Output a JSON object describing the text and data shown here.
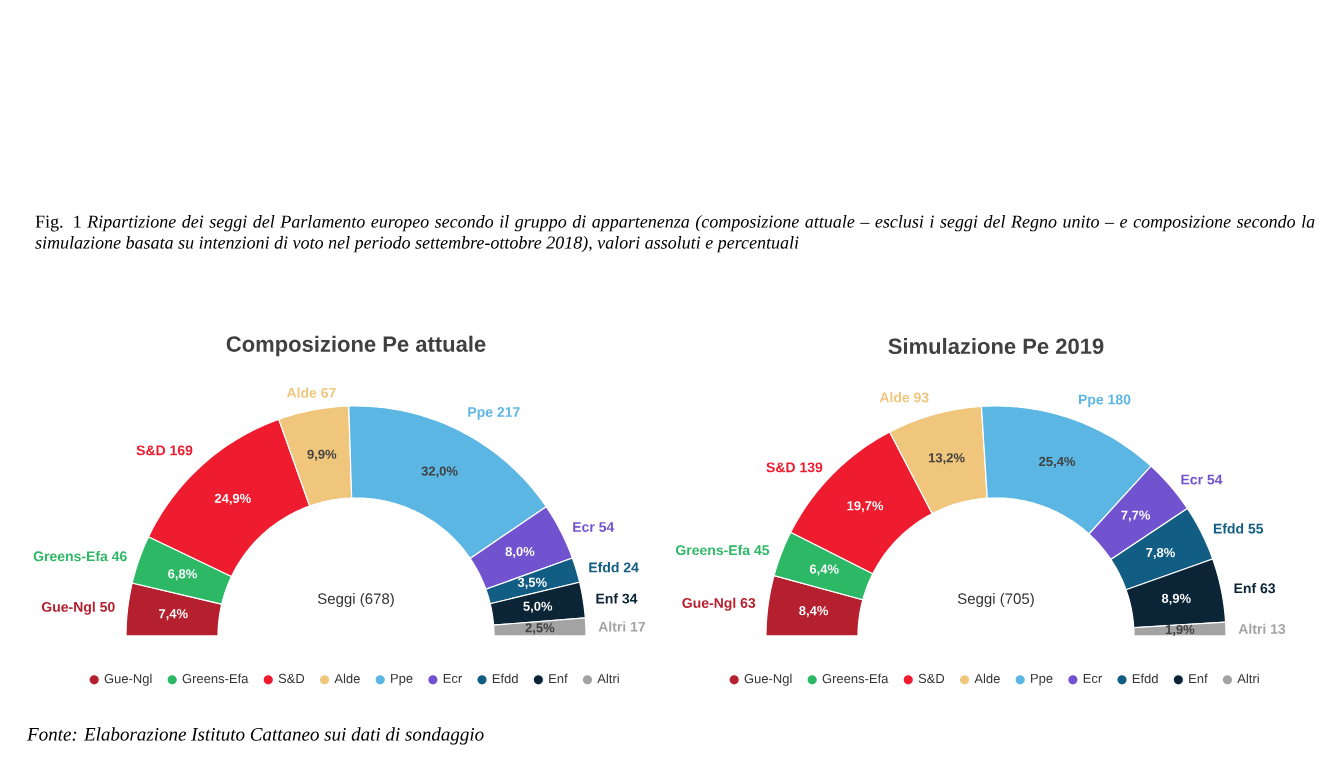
{
  "chart_data": [
    {
      "type": "donut",
      "title": "Composizione Pe attuale",
      "categories": [
        "Gue-Ngl",
        "Greens-Efa",
        "S&D",
        "Alde",
        "Ppe",
        "Ecr",
        "Efdd",
        "Enf",
        "Altri"
      ],
      "values": [
        7.4,
        6.8,
        24.9,
        9.9,
        32.0,
        8.0,
        3.5,
        5.0,
        2.5
      ],
      "value_labels": [
        "7,4%",
        "6,8%",
        "24,9%",
        "9,9%",
        "32,0%",
        "8,0%",
        "3,5%",
        "5,0%",
        "2,5%"
      ],
      "colors": [
        "#b5202e",
        "#2db866",
        "#ee1c2e",
        "#f0c57c",
        "#5bb6e3",
        "#7153cf",
        "#115d83",
        "#0c2536",
        "#a3a3a3"
      ],
      "legend": "bottom",
      "annotations": [
        "Seggi (678)",
        "Gue-Ngl 50",
        "Greens-Efa 46",
        "S&D 169",
        "Alde 67",
        "Ppe 217",
        "Ecr 54",
        "Efdd 24",
        "Enf 34",
        "Altri 17",
        "Fig. 1 *Ripartizione dei seggi del Parlamento europeo secondo il gruppo di appartenenza (composizione attuale – esclusi i seggi del Regno unito – e composizione secondo la simulazione basata su intenzioni di voto nel periodo settembre-ottobre 2018), valori assoluti e percentuali*"
      ]
    },
    {
      "type": "donut",
      "title": "Simulazione Pe 2019",
      "categories": [
        "Gue-Ngl",
        "Greens-Efa",
        "S&D",
        "Alde",
        "Ppe",
        "Ecr",
        "Efdd",
        "Enf",
        "Altri"
      ],
      "values": [
        8.4,
        6.4,
        19.7,
        13.2,
        25.4,
        7.7,
        7.8,
        8.9,
        1.9
      ],
      "value_labels": [
        "8,4%",
        "6,4%",
        "19,7%",
        "13,2%",
        "25,4%",
        "7,7%",
        "7,8%",
        "8,9%",
        "1,9%"
      ],
      "colors": [
        "#b5202e",
        "#2db866",
        "#ee1c2e",
        "#f0c57c",
        "#5bb6e3",
        "#7153cf",
        "#115d83",
        "#0c2536",
        "#a3a3a3"
      ],
      "legend": "bottom",
      "annotations": [
        "Seggi (705)",
        "Gue-Ngl 63",
        "Greens-Efa 45",
        "S&D 139",
        "Alde 93",
        "Ppe 180",
        "Ecr 54",
        "Efdd 55",
        "Enf 63",
        "Altri 13",
        "Fonte: Elaborazione Istituto Cattaneo sui dati di sondaggio"
      ]
    }
  ]
}
